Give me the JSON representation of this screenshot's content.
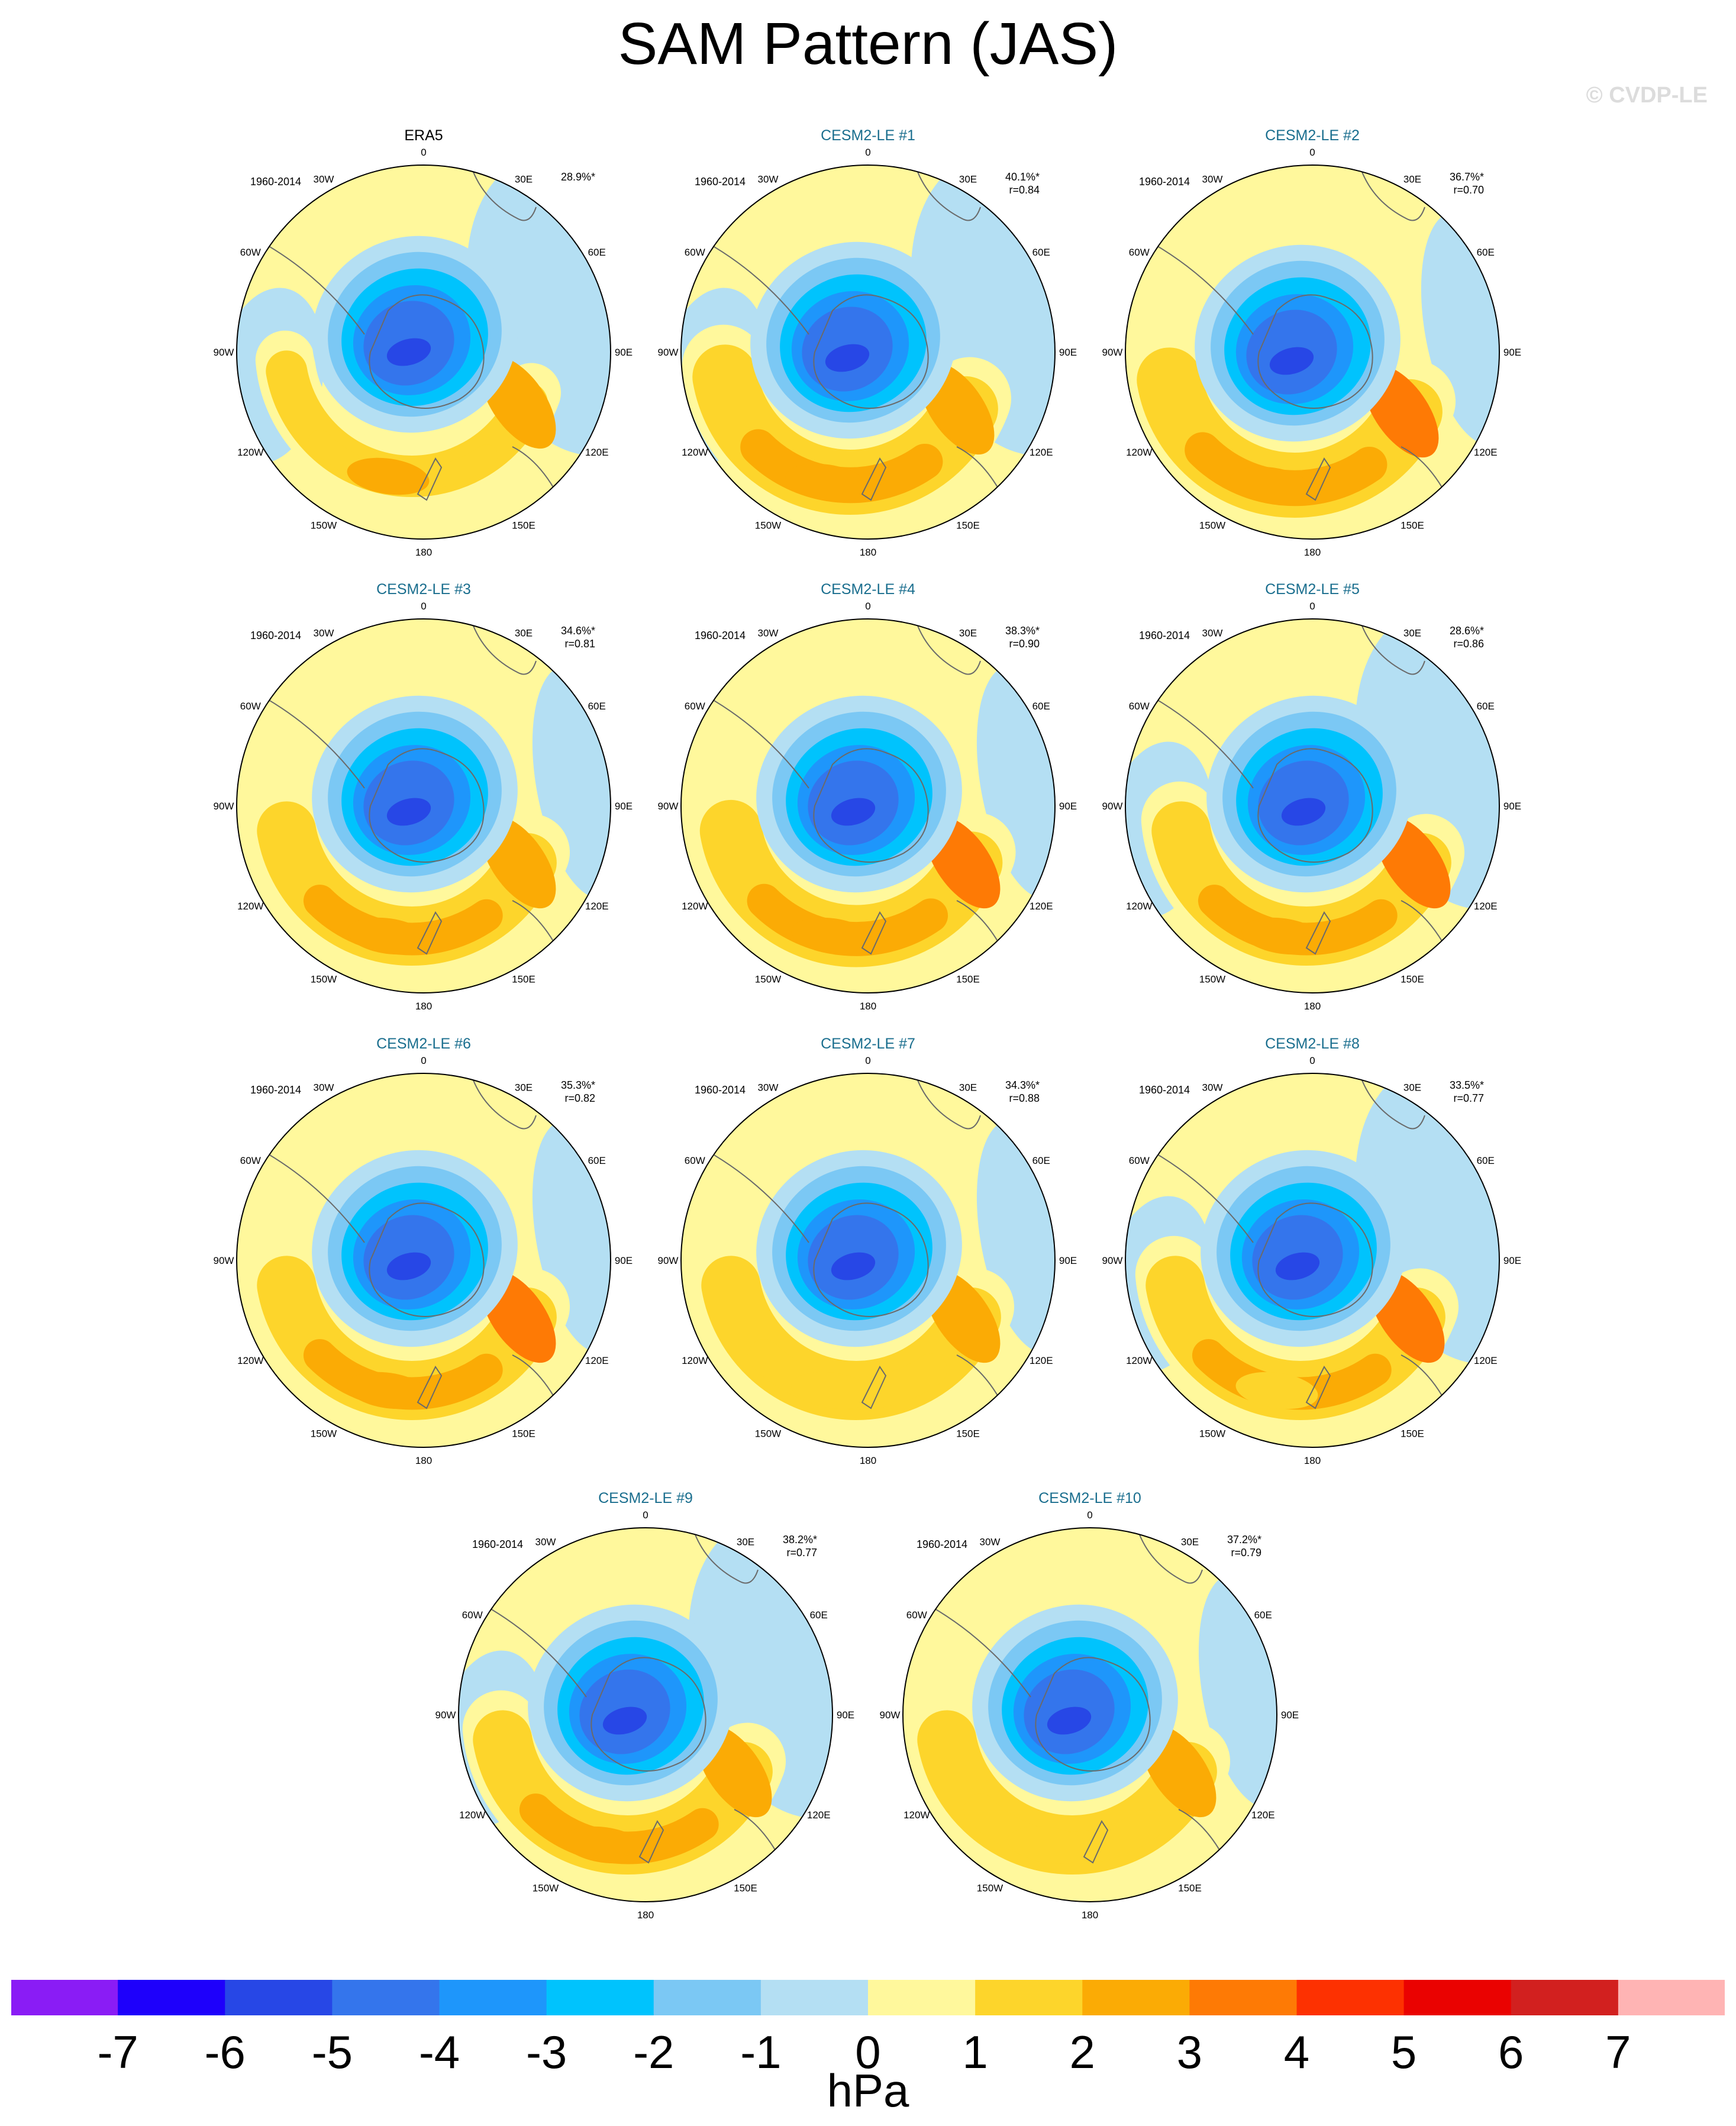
{
  "figure": {
    "title": "SAM Pattern (JAS)",
    "watermark": "© CVDP-LE"
  },
  "chart_data": {
    "type": "heatmap",
    "projection": "south-polar-stereographic",
    "period": "1960-2014",
    "longitude_labels": [
      "0",
      "30E",
      "60E",
      "90E",
      "120E",
      "150E",
      "180",
      "150W",
      "120W",
      "90W",
      "60W",
      "30W"
    ],
    "panels": [
      {
        "label": "ERA5",
        "title_color": "#000000",
        "period": "1960-2014",
        "pct": "28.9%*",
        "r": ""
      },
      {
        "label": "CESM2-LE #1",
        "title_color": "#1a6e8e",
        "period": "1960-2014",
        "pct": "40.1%*",
        "r": "r=0.84"
      },
      {
        "label": "CESM2-LE #2",
        "title_color": "#1a6e8e",
        "period": "1960-2014",
        "pct": "36.7%*",
        "r": "r=0.70"
      },
      {
        "label": "CESM2-LE #3",
        "title_color": "#1a6e8e",
        "period": "1960-2014",
        "pct": "34.6%*",
        "r": "r=0.81"
      },
      {
        "label": "CESM2-LE #4",
        "title_color": "#1a6e8e",
        "period": "1960-2014",
        "pct": "38.3%*",
        "r": "r=0.90"
      },
      {
        "label": "CESM2-LE #5",
        "title_color": "#1a6e8e",
        "period": "1960-2014",
        "pct": "28.6%*",
        "r": "r=0.86"
      },
      {
        "label": "CESM2-LE #6",
        "title_color": "#1a6e8e",
        "period": "1960-2014",
        "pct": "35.3%*",
        "r": "r=0.82"
      },
      {
        "label": "CESM2-LE #7",
        "title_color": "#1a6e8e",
        "period": "1960-2014",
        "pct": "34.3%*",
        "r": "r=0.88"
      },
      {
        "label": "CESM2-LE #8",
        "title_color": "#1a6e8e",
        "period": "1960-2014",
        "pct": "33.5%*",
        "r": "r=0.77"
      },
      {
        "label": "CESM2-LE #9",
        "title_color": "#1a6e8e",
        "period": "1960-2014",
        "pct": "38.2%*",
        "r": "r=0.77"
      },
      {
        "label": "CESM2-LE #10",
        "title_color": "#1a6e8e",
        "period": "1960-2014",
        "pct": "37.2%*",
        "r": "r=0.79"
      }
    ],
    "colorbar": {
      "units": "hPa",
      "tick_labels": [
        "-7",
        "-6",
        "-5",
        "-4",
        "-3",
        "-2",
        "-1",
        "0",
        "1",
        "2",
        "3",
        "4",
        "5",
        "6",
        "7"
      ],
      "colors": [
        "#8a1cf5",
        "#1e00fb",
        "#2747e6",
        "#3475ec",
        "#1e96fb",
        "#00c3fd",
        "#7bc8f4",
        "#b4dff3",
        "#fff89c",
        "#fdd52b",
        "#fbab05",
        "#fe7a05",
        "#fd3101",
        "#ea0201",
        "#d2201f",
        "#ffb4b4"
      ]
    }
  }
}
